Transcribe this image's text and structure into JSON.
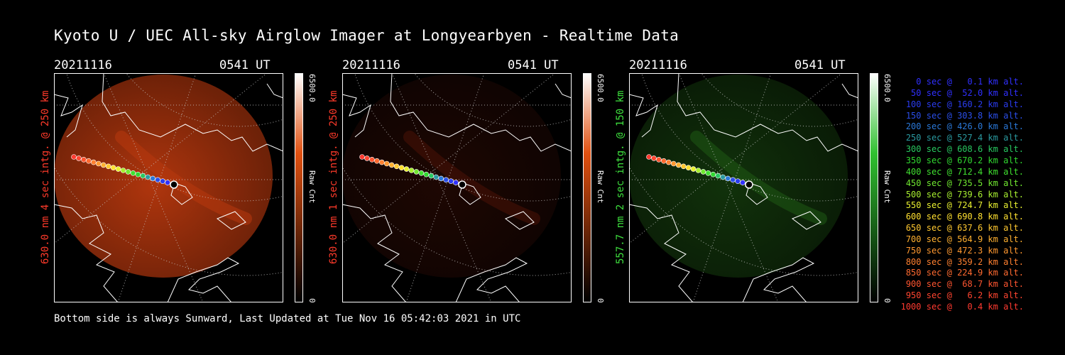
{
  "title": "Kyoto U / UEC All-sky Airglow Imager at Longyearbyen - Realtime Data",
  "footer": "Bottom side is always Sunward, Last Updated at Tue Nov 16 05:42:03 2021 in UTC",
  "panels": [
    {
      "date": "20211116",
      "time": "0541 UT",
      "ylabel": "630.0 nm 4 sec intg. @ 250 km",
      "label_color": "#ff3a2a",
      "cb_max": "6500.0",
      "cb_min": "0",
      "cb_title": "Raw Cnt",
      "colorbar_top": "#ffffff",
      "colorbar_mid": "#e05010",
      "colorbar_bottom": "#000000",
      "image_color": "#b8380e",
      "image_level": 0.85
    },
    {
      "date": "20211116",
      "time": "0541 UT",
      "ylabel": "630.0 nm 1 sec intg. @ 250 km",
      "label_color": "#ff3a2a",
      "cb_max": "6500.0",
      "cb_min": "0",
      "cb_title": "Raw Cnt",
      "colorbar_top": "#ffffff",
      "colorbar_mid": "#e05010",
      "colorbar_bottom": "#000000",
      "image_color": "#4a1207",
      "image_level": 0.3
    },
    {
      "date": "20211116",
      "time": "0541 UT",
      "ylabel": "557.7 nm 2 sec intg. @ 150 km",
      "label_color": "#3ee03e",
      "cb_max": "6500.0",
      "cb_min": "0",
      "cb_title": "Raw Cnt",
      "colorbar_top": "#ffffff",
      "colorbar_mid": "#30c030",
      "colorbar_bottom": "#000000",
      "image_color": "#1f5a14",
      "image_level": 0.45
    }
  ],
  "legend": [
    {
      "text": "   0 sec @   0.1 km alt.",
      "color": "#3030ff"
    },
    {
      "text": "  50 sec @  52.0 km alt.",
      "color": "#3030ff"
    },
    {
      "text": " 100 sec @ 160.2 km alt.",
      "color": "#2a3cf0"
    },
    {
      "text": " 150 sec @ 303.8 km alt.",
      "color": "#2a4ee8"
    },
    {
      "text": " 200 sec @ 426.0 km alt.",
      "color": "#2a78d8"
    },
    {
      "text": " 250 sec @ 527.4 km alt.",
      "color": "#2a9aa0"
    },
    {
      "text": " 300 sec @ 608.6 km alt.",
      "color": "#28c860"
    },
    {
      "text": " 350 sec @ 670.2 km alt.",
      "color": "#30d830"
    },
    {
      "text": " 400 sec @ 712.4 km alt.",
      "color": "#40e030"
    },
    {
      "text": " 450 sec @ 735.5 km alt.",
      "color": "#70e830"
    },
    {
      "text": " 500 sec @ 739.6 km alt.",
      "color": "#a8f030"
    },
    {
      "text": " 550 sec @ 724.7 km alt.",
      "color": "#e8f030"
    },
    {
      "text": " 600 sec @ 690.8 km alt.",
      "color": "#ffe030"
    },
    {
      "text": " 650 sec @ 637.6 km alt.",
      "color": "#ffc830"
    },
    {
      "text": " 700 sec @ 564.9 km alt.",
      "color": "#ffb030"
    },
    {
      "text": " 750 sec @ 472.3 km alt.",
      "color": "#ff9830"
    },
    {
      "text": " 800 sec @ 359.2 km alt.",
      "color": "#ff8030"
    },
    {
      "text": " 850 sec @ 224.9 km alt.",
      "color": "#ff6a30"
    },
    {
      "text": " 900 sec @  68.7 km alt.",
      "color": "#ff5530"
    },
    {
      "text": " 950 sec @   6.2 km alt.",
      "color": "#ff4530"
    },
    {
      "text": "1000 sec @   0.4 km alt.",
      "color": "#ff3a30"
    }
  ],
  "icons": {
    "trajectory": "trajectory-dots",
    "coastline": "coastline-map"
  }
}
